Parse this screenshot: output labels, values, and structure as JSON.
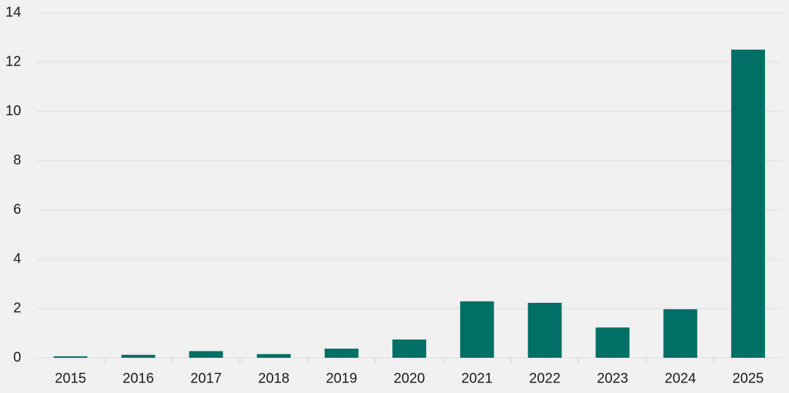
{
  "chart_data": {
    "type": "bar",
    "categories": [
      "2015",
      "2016",
      "2017",
      "2018",
      "2019",
      "2020",
      "2021",
      "2022",
      "2023",
      "2024",
      "2025"
    ],
    "values": [
      0.06,
      0.12,
      0.27,
      0.15,
      0.37,
      0.74,
      2.29,
      2.23,
      1.23,
      1.97,
      12.5
    ],
    "color": "#006f65",
    "ylim": [
      0,
      14
    ],
    "yticks": [
      0,
      2,
      4,
      6,
      8,
      10,
      12,
      14
    ],
    "grid": true
  }
}
